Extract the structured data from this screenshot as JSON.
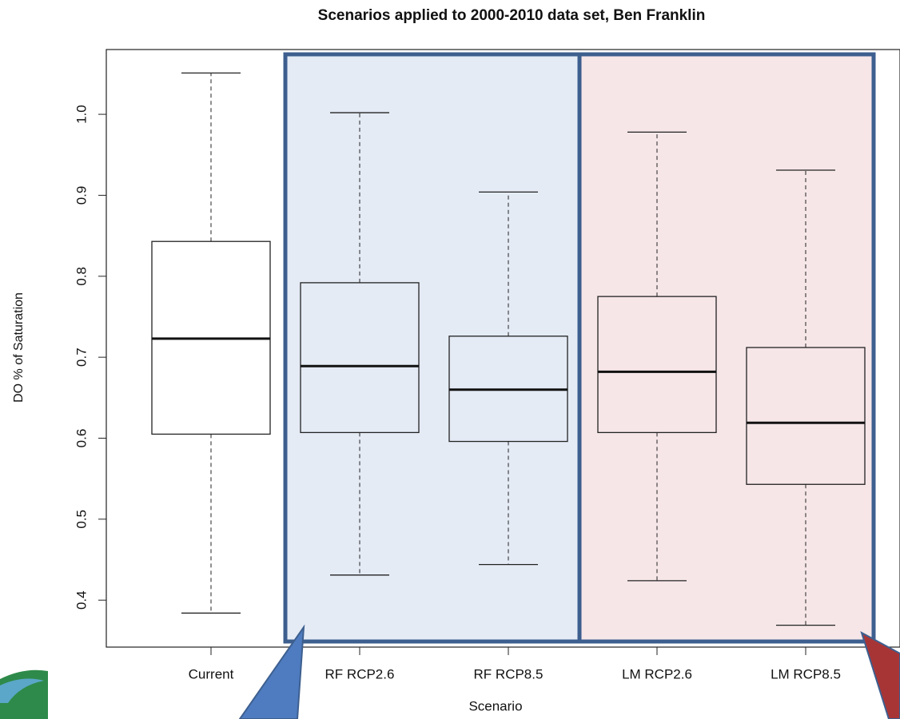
{
  "chart_data": {
    "type": "boxplot",
    "title": "Scenarios applied to 2000-2010 data set, Ben Franklin",
    "x_label": "Scenario",
    "y_label": "DO % of Saturation",
    "categories": [
      "Current",
      "RF RCP2.6",
      "RF RCP8.5",
      "LM RCP2.6",
      "LM RCP8.5"
    ],
    "min": [
      0.384,
      0.431,
      0.444,
      0.424,
      0.369
    ],
    "q1": [
      0.605,
      0.607,
      0.596,
      0.607,
      0.543
    ],
    "median": [
      0.723,
      0.689,
      0.66,
      0.682,
      0.619
    ],
    "q3": [
      0.843,
      0.792,
      0.726,
      0.775,
      0.712
    ],
    "max": [
      1.051,
      1.002,
      0.904,
      0.978,
      0.931
    ],
    "ylim": [
      0.342,
      1.08
    ],
    "yticks": [
      0.4,
      0.5,
      0.6,
      0.7,
      0.8,
      0.9,
      {
        "value": 1,
        "label": "1.0"
      }
    ]
  }
}
